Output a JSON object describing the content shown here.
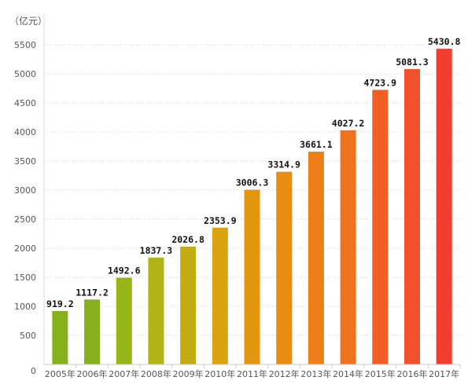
{
  "chart_data": {
    "type": "bar",
    "unit_label": "（亿元）",
    "categories": [
      "2005年",
      "2006年",
      "2007年",
      "2008年",
      "2009年",
      "2010年",
      "2011年",
      "2012年",
      "2013年",
      "2014年",
      "2015年",
      "2016年",
      "2017年"
    ],
    "values": [
      919.2,
      1117.2,
      1492.6,
      1837.3,
      2026.8,
      2353.9,
      3006.3,
      3314.9,
      3661.1,
      4027.2,
      4723.9,
      5081.3,
      5430.8
    ],
    "data_labels": [
      "919.2",
      "1117.2",
      "1492.6",
      "1837.3",
      "2026.8",
      "2353.9",
      "3006.3",
      "3314.9",
      "3661.1",
      "4027.2",
      "4723.9",
      "5081.3",
      "5430.8"
    ],
    "y_ticks": [
      "0",
      "500",
      "1000",
      "1500",
      "2000",
      "2500",
      "3000",
      "3500",
      "4000",
      "4500",
      "5000",
      "5500"
    ],
    "ylim": [
      0,
      5500
    ],
    "bar_colors": [
      "#86b11c",
      "#86b11c",
      "#98b518",
      "#b1b213",
      "#c3ac12",
      "#dba20f",
      "#e3960e",
      "#e98c12",
      "#ed7f18",
      "#ef721d",
      "#f15f27",
      "#f2522b",
      "#f13c2e"
    ],
    "grid": "dotted-horizontal",
    "legend": "none",
    "title": "",
    "xlabel": "",
    "ylabel": ""
  }
}
